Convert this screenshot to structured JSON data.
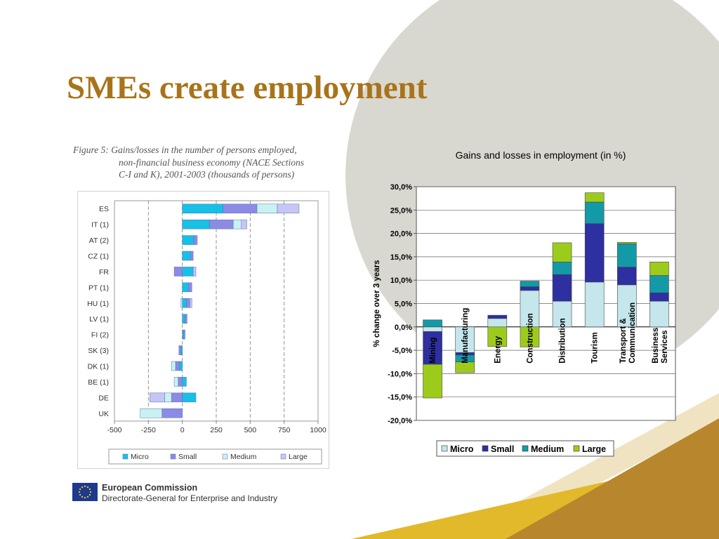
{
  "slide": {
    "title": "SMEs create employment",
    "figure_caption": [
      "Figure 5: Gains/losses in the number of persons employed,",
      "non-financial business economy (NACE Sections",
      "C-I and K), 2001-2003 (thousands of persons)"
    ],
    "footer": {
      "org_name": "European Commission",
      "dg_name": "Directorate-General for Enterprise and Industry"
    },
    "colors": {
      "title": "#a8741a",
      "background_circle": "#d9d8d0",
      "accent_gold": "#b8862c",
      "accent_yellow": "#e2b92a"
    }
  },
  "chart_data": [
    {
      "type": "bar",
      "orientation": "horizontal",
      "stacked": true,
      "categories": [
        "ES",
        "IT (1)",
        "AT (2)",
        "CZ (1)",
        "FR",
        "PT (1)",
        "HU (1)",
        "LV (1)",
        "FI (2)",
        "SK (3)",
        "DK (1)",
        "BE (1)",
        "DE",
        "UK"
      ],
      "series": [
        {
          "name": "Micro",
          "color": "#16c0e6",
          "values": [
            300,
            200,
            85,
            60,
            80,
            45,
            30,
            20,
            10,
            -10,
            -20,
            30,
            100,
            0
          ]
        },
        {
          "name": "Small",
          "color": "#8b8be6",
          "values": [
            250,
            175,
            25,
            20,
            -60,
            25,
            25,
            15,
            10,
            -15,
            -30,
            -30,
            -80,
            -150
          ]
        },
        {
          "name": "Medium",
          "color": "#c8f2f2",
          "values": [
            150,
            60,
            0,
            0,
            0,
            0,
            -10,
            0,
            0,
            0,
            -30,
            -30,
            -50,
            -160
          ]
        },
        {
          "name": "Large",
          "color": "#c6c6f5",
          "values": [
            160,
            40,
            0,
            0,
            20,
            0,
            15,
            0,
            0,
            0,
            0,
            0,
            -110,
            0
          ]
        }
      ],
      "xticks": [
        "-500",
        "-250",
        "0",
        "250",
        "500",
        "750",
        "1000"
      ],
      "xlim": [
        -500,
        1000
      ],
      "grid": "dashed vertical",
      "legend": "bottom"
    },
    {
      "type": "bar",
      "stacked": true,
      "title": "Gains and losses  in employment (in %)",
      "ylabel": "% change over 3 years",
      "categories": [
        "Mining",
        "Manufacturing",
        "Energy",
        "Construction",
        "Distribution",
        "Tourism",
        "Transport & Communication",
        "Business Services"
      ],
      "category_lines": [
        [
          "Mining"
        ],
        [
          "Manufacturing"
        ],
        [
          "Energy"
        ],
        [
          "Construction"
        ],
        [
          "Distribution"
        ],
        [
          "Tourism"
        ],
        [
          "Transport &",
          "Communication"
        ],
        [
          "Business",
          "Services"
        ]
      ],
      "series": [
        {
          "name": "Micro",
          "color": "#c4e6ec",
          "values": [
            -1.0,
            -5.5,
            1.8,
            7.8,
            5.5,
            9.6,
            9.0,
            5.5
          ]
        },
        {
          "name": "Small",
          "color": "#2e2fa0",
          "values": [
            -7.0,
            -0.5,
            0.7,
            0.8,
            5.7,
            12.5,
            3.8,
            1.8
          ]
        },
        {
          "name": "Medium",
          "color": "#149aa6",
          "values": [
            1.5,
            -1.5,
            0.0,
            1.2,
            2.7,
            4.6,
            5.0,
            3.7
          ]
        },
        {
          "name": "Large",
          "color": "#9dcb1c",
          "values": [
            -7.2,
            -2.3,
            -4.2,
            -4.3,
            4.1,
            2.0,
            0.3,
            2.9
          ]
        }
      ],
      "yticks": [
        "30,0%",
        "25,0%",
        "20,0%",
        "15,0%",
        "10,0%",
        "5,0%",
        "0,0%",
        "-5,0%",
        "-10,0%",
        "-15,0%",
        "-20,0%"
      ],
      "ylim": [
        -20,
        30
      ],
      "grid": "horizontal",
      "legend": "bottom"
    }
  ]
}
